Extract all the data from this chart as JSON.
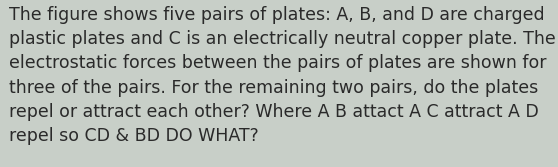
{
  "text": "The figure shows five pairs of plates: A, B, and D are charged\nplastic plates and C is an electrically neutral copper plate. The\nelectrostatic forces between the pairs of plates are shown for\nthree of the pairs. For the remaining two pairs, do the plates\nrepel or attract each other? Where A B attact A C attract A D\nrepel so CD & BD DO WHAT?",
  "background_color": "#c8cfc8",
  "text_color": "#2a2a2a",
  "font_size": 12.5,
  "fig_width": 5.58,
  "fig_height": 1.67,
  "dpi": 100
}
